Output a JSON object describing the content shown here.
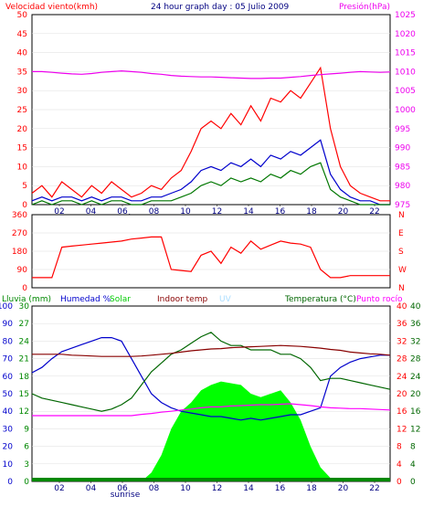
{
  "title": "24 hour graph day : 05 Julio 2009",
  "colors": {
    "wind": "#ff0000",
    "gust": "#ff0000",
    "avg": "#0000cc",
    "low": "#007700",
    "pressure": "#ee00ee",
    "humidity": "#0000cc",
    "solar": "#00ff00",
    "indoor": "#880000",
    "uv": "#aaddff",
    "temp": "#006600",
    "dew": "#ff00ff",
    "rain": "#008800"
  },
  "chart_data": [
    {
      "type": "line",
      "title": "24 hour graph day : 05 Julio 2009",
      "ylabel_left": "Velocidad viento(kmh)",
      "ylabel_right": "Presión(hPa)",
      "ylim_left": [
        0,
        50
      ],
      "ylim_right": [
        975,
        1025
      ],
      "yticks_left": [
        0,
        5,
        10,
        15,
        20,
        25,
        30,
        35,
        40,
        45,
        50
      ],
      "yticks_right": [
        975,
        980,
        985,
        990,
        995,
        1000,
        1005,
        1010,
        1015,
        1020,
        1025
      ],
      "xlabels": [
        "02",
        "04",
        "06",
        "08",
        "10",
        "12",
        "14",
        "16",
        "18",
        "20",
        "22"
      ],
      "sunrise_label": "sunrise",
      "series": [
        {
          "key": "gust",
          "axis": "left",
          "values": [
            3,
            5,
            2,
            6,
            4,
            2,
            5,
            3,
            6,
            4,
            2,
            3,
            5,
            4,
            7,
            9,
            14,
            20,
            22,
            20,
            24,
            21,
            26,
            22,
            28,
            27,
            30,
            28,
            32,
            36,
            20,
            10,
            5,
            3,
            2,
            1,
            1
          ]
        },
        {
          "key": "avg",
          "axis": "left",
          "values": [
            1,
            2,
            1,
            2,
            2,
            1,
            2,
            1,
            2,
            2,
            1,
            1,
            2,
            2,
            3,
            4,
            6,
            9,
            10,
            9,
            11,
            10,
            12,
            10,
            13,
            12,
            14,
            13,
            15,
            17,
            8,
            4,
            2,
            1,
            1,
            0,
            0
          ]
        },
        {
          "key": "low",
          "axis": "left",
          "values": [
            0,
            1,
            0,
            1,
            1,
            0,
            1,
            0,
            1,
            1,
            0,
            0,
            1,
            1,
            1,
            2,
            3,
            5,
            6,
            5,
            7,
            6,
            7,
            6,
            8,
            7,
            9,
            8,
            10,
            11,
            4,
            2,
            1,
            0,
            0,
            0,
            0
          ]
        },
        {
          "key": "pressure",
          "axis": "right",
          "values": [
            1010,
            1010,
            1009.8,
            1009.6,
            1009.4,
            1009.3,
            1009.5,
            1009.8,
            1010,
            1010.2,
            1010,
            1009.8,
            1009.5,
            1009.3,
            1009,
            1008.8,
            1008.7,
            1008.6,
            1008.6,
            1008.5,
            1008.4,
            1008.3,
            1008.2,
            1008.2,
            1008.3,
            1008.3,
            1008.5,
            1008.7,
            1009,
            1009.2,
            1009.4,
            1009.6,
            1009.8,
            1010,
            1009.9,
            1009.8,
            1009.9
          ]
        }
      ]
    },
    {
      "type": "line",
      "title": "",
      "ylabel_left": "",
      "ylim": [
        0,
        360
      ],
      "yticks_left": [
        0,
        90,
        180,
        270,
        360
      ],
      "yticks_right": [
        "N",
        "W",
        "S",
        "E",
        "N"
      ],
      "series": [
        {
          "key": "wind",
          "values": [
            50,
            50,
            50,
            200,
            205,
            210,
            215,
            220,
            225,
            230,
            240,
            245,
            250,
            250,
            90,
            85,
            80,
            160,
            180,
            120,
            200,
            170,
            230,
            190,
            210,
            230,
            220,
            215,
            200,
            90,
            50,
            50,
            60,
            60,
            60,
            60,
            60
          ]
        }
      ]
    },
    {
      "type": "area",
      "title": "",
      "legend": [
        "Lluvia (mm)",
        "Humedad %",
        "Solar",
        "Indoor temp",
        "UV",
        "Temperatura (°C)",
        "Punto rocío"
      ],
      "yticks_rain": [
        0,
        3,
        6,
        9,
        12,
        15,
        18,
        21,
        24,
        27,
        30
      ],
      "yticks_hum": [
        0,
        10,
        20,
        30,
        40,
        50,
        60,
        70,
        80,
        90,
        100
      ],
      "yticks_temp_red": [
        0,
        4,
        8,
        12,
        16,
        20,
        24,
        28,
        32,
        36,
        40
      ],
      "yticks_temp_green": [
        0,
        4,
        8,
        12,
        16,
        20,
        24,
        28,
        32,
        36,
        40
      ],
      "ylim_humidity": [
        0,
        100
      ],
      "ylim_temp": [
        0,
        40
      ],
      "series": [
        {
          "key": "humidity",
          "values": [
            62,
            65,
            70,
            74,
            76,
            78,
            80,
            82,
            82,
            80,
            70,
            60,
            50,
            45,
            42,
            40,
            39,
            38,
            37,
            37,
            36,
            35,
            36,
            35,
            36,
            37,
            38,
            38,
            40,
            42,
            60,
            65,
            68,
            70,
            71,
            72,
            72
          ]
        },
        {
          "key": "temp",
          "values": [
            20,
            19,
            18.5,
            18,
            17.5,
            17,
            16.5,
            16,
            16.5,
            17.5,
            19,
            22,
            25,
            27,
            29,
            30,
            31.5,
            33,
            34,
            32,
            31,
            31,
            30,
            30,
            30,
            29,
            29,
            28,
            26,
            23,
            23.5,
            23.5,
            23,
            22.5,
            22,
            21.5,
            21
          ]
        },
        {
          "key": "dew",
          "values": [
            15,
            15,
            15,
            15,
            15,
            15,
            15,
            15,
            15,
            15,
            15,
            15.3,
            15.5,
            15.8,
            16,
            16.3,
            16.5,
            16.8,
            17,
            17,
            17.2,
            17.3,
            17.4,
            17.5,
            17.5,
            17.6,
            17.7,
            17.5,
            17.3,
            17,
            16.8,
            16.7,
            16.6,
            16.6,
            16.5,
            16.4,
            16.3
          ]
        },
        {
          "key": "indoor",
          "values": [
            29,
            29,
            29,
            29,
            28.8,
            28.7,
            28.6,
            28.5,
            28.5,
            28.5,
            28.5,
            28.6,
            28.8,
            29,
            29.2,
            29.5,
            29.8,
            30,
            30.2,
            30.3,
            30.5,
            30.6,
            30.7,
            30.8,
            30.9,
            31,
            30.9,
            30.8,
            30.6,
            30.4,
            30.1,
            29.9,
            29.5,
            29.3,
            29.1,
            29,
            28.8
          ]
        },
        {
          "key": "solar",
          "values": [
            0,
            0,
            0,
            0,
            0,
            0,
            0,
            0,
            0,
            0,
            0,
            0,
            5,
            15,
            30,
            40,
            45,
            52,
            55,
            57,
            56,
            55,
            50,
            48,
            50,
            52,
            45,
            35,
            20,
            8,
            2,
            0,
            0,
            0,
            0,
            0,
            0
          ]
        },
        {
          "key": "rain",
          "values": [
            0.5,
            0.5,
            0.5,
            0.5,
            0.5,
            0.5,
            0.5,
            0.5,
            0.5,
            0.5,
            0.5,
            0.5,
            0.5,
            0.5,
            0.5,
            0.5,
            0.5,
            0.5,
            0.5,
            0.5,
            0.5,
            0.5,
            0.5,
            0.5,
            0.5,
            0.5,
            0.5,
            0.5,
            0.5,
            0.5,
            0.5,
            0.5,
            0.5,
            0.5,
            0.5,
            0.5,
            0.5
          ]
        }
      ]
    }
  ]
}
